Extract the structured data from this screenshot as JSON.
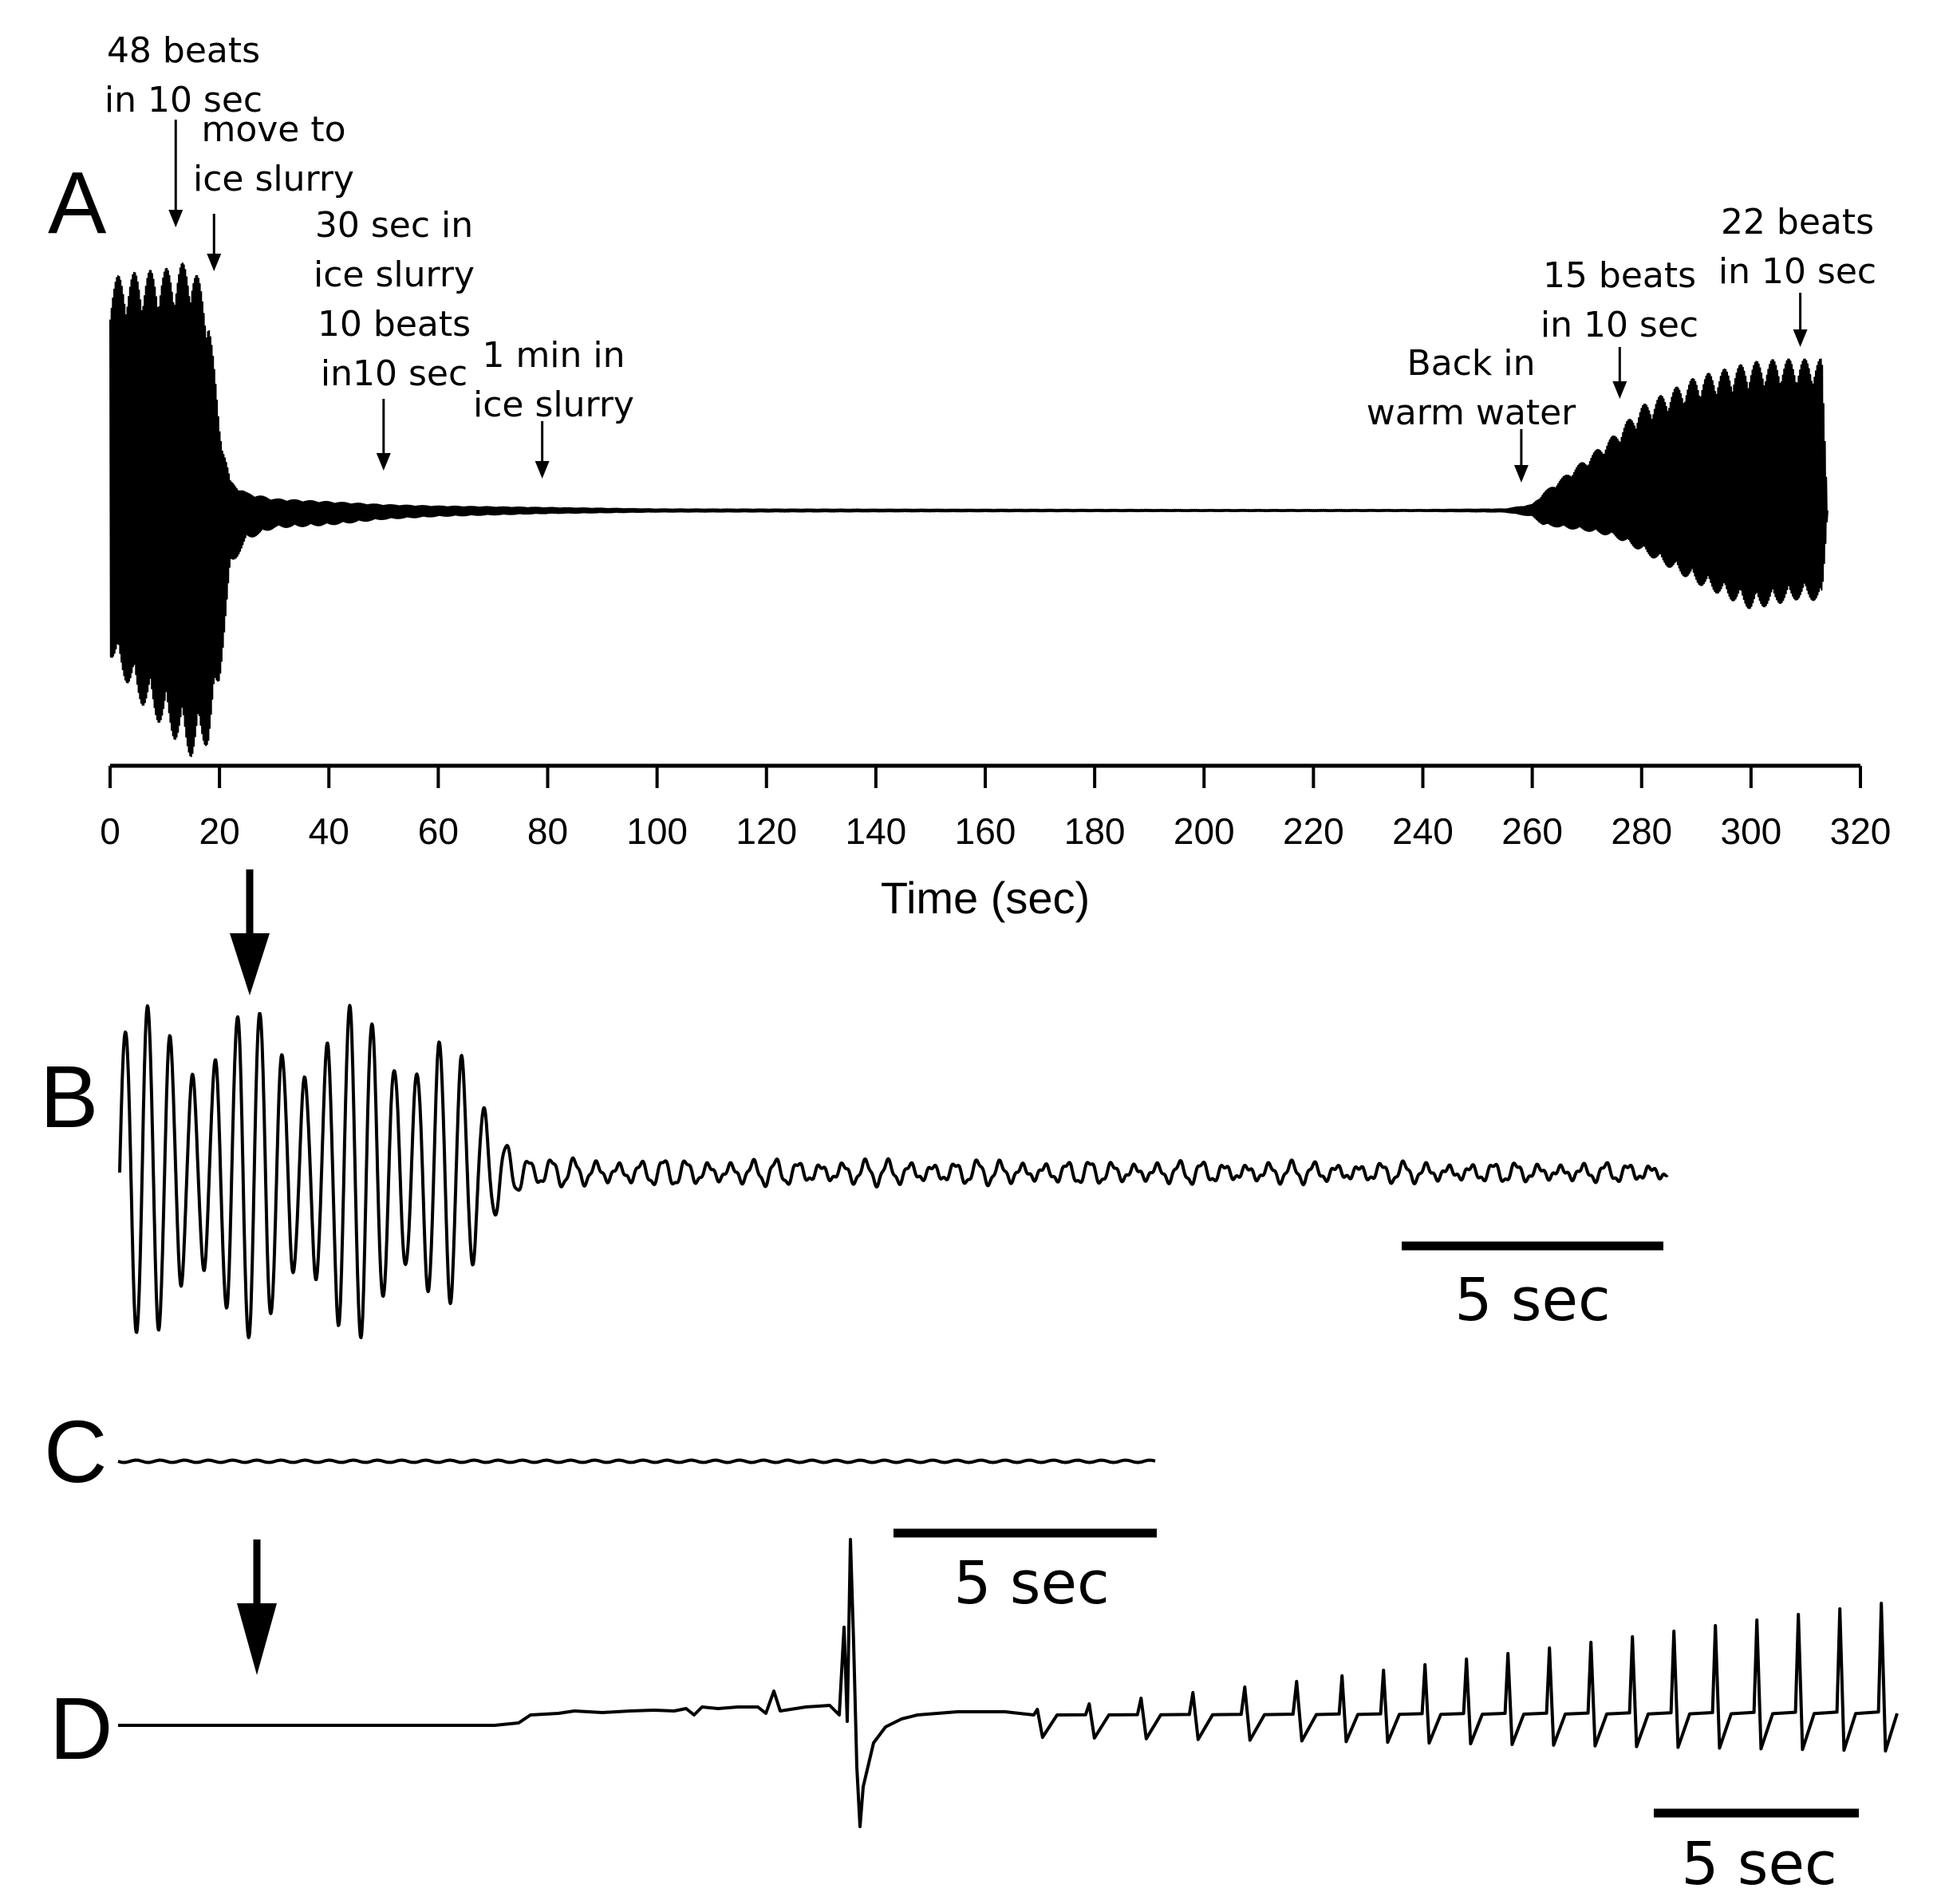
{
  "chart_data": [
    {
      "panel": "A",
      "type": "line",
      "xlabel": "Time (sec)",
      "xlim": [
        0,
        320
      ],
      "xticks": [
        0,
        20,
        40,
        60,
        80,
        100,
        120,
        140,
        160,
        180,
        200,
        220,
        240,
        260,
        280,
        300,
        320
      ],
      "series": [
        {
          "envelope_t": [
            0,
            5,
            10,
            15,
            18,
            20,
            22,
            25,
            30,
            40,
            50,
            60,
            80,
            100,
            150,
            200,
            240,
            255,
            260,
            262,
            266,
            270,
            275,
            280,
            290,
            300,
            305,
            310,
            313,
            314
          ],
          "envelope_upper": [
            0.8,
            0.82,
            0.83,
            0.86,
            0.7,
            0.3,
            0.1,
            0.06,
            0.04,
            0.03,
            0.02,
            0.015,
            0.01,
            0.005,
            0.004,
            0.003,
            0.003,
            0.005,
            0.02,
            0.06,
            0.12,
            0.18,
            0.26,
            0.36,
            0.46,
            0.51,
            0.52,
            0.52,
            0.52,
            0.0
          ],
          "envelope_lower": [
            -0.5,
            -0.65,
            -0.75,
            -0.85,
            -0.8,
            -0.6,
            -0.2,
            -0.1,
            -0.06,
            -0.05,
            -0.03,
            -0.02,
            -0.01,
            -0.005,
            -0.004,
            -0.003,
            -0.003,
            -0.005,
            -0.02,
            -0.05,
            -0.06,
            -0.07,
            -0.09,
            -0.14,
            -0.25,
            -0.34,
            -0.32,
            -0.3,
            -0.32,
            0.0
          ]
        }
      ],
      "annotations": [
        {
          "x": 12,
          "lines": [
            "48 beats",
            "in 10 sec"
          ]
        },
        {
          "x": 19,
          "lines": [
            "move to",
            "ice slurry"
          ]
        },
        {
          "x": 50,
          "lines": [
            "30 sec in",
            "ice slurry",
            "10 beats",
            "in10 sec"
          ]
        },
        {
          "x": 79,
          "lines": [
            "1 min in",
            "ice slurry"
          ]
        },
        {
          "x": 258,
          "lines": [
            "Back in",
            "warm water"
          ]
        },
        {
          "x": 276,
          "lines": [
            "15 beats",
            "in 10 sec"
          ]
        },
        {
          "x": 309,
          "lines": [
            "22 beats",
            "in 10 sec"
          ]
        }
      ]
    },
    {
      "panel": "B",
      "type": "line",
      "duration_sec": 30,
      "scale_bar": {
        "length_sec": 5,
        "label": "5 sec"
      },
      "description_points": {
        "t": [
          0,
          6,
          7,
          8,
          30
        ],
        "amplitude": [
          1.0,
          1.0,
          0.5,
          0.08,
          0.05
        ]
      }
    },
    {
      "panel": "C",
      "type": "line",
      "duration_sec": 20,
      "scale_bar": {
        "length_sec": 5,
        "label": "5 sec"
      }
    },
    {
      "panel": "D",
      "type": "line",
      "duration_sec": 35,
      "scale_bar": {
        "length_sec": 5,
        "label": "5 sec"
      }
    }
  ],
  "labels": {
    "A": "A",
    "B": "B",
    "C": "C",
    "D": "D"
  }
}
